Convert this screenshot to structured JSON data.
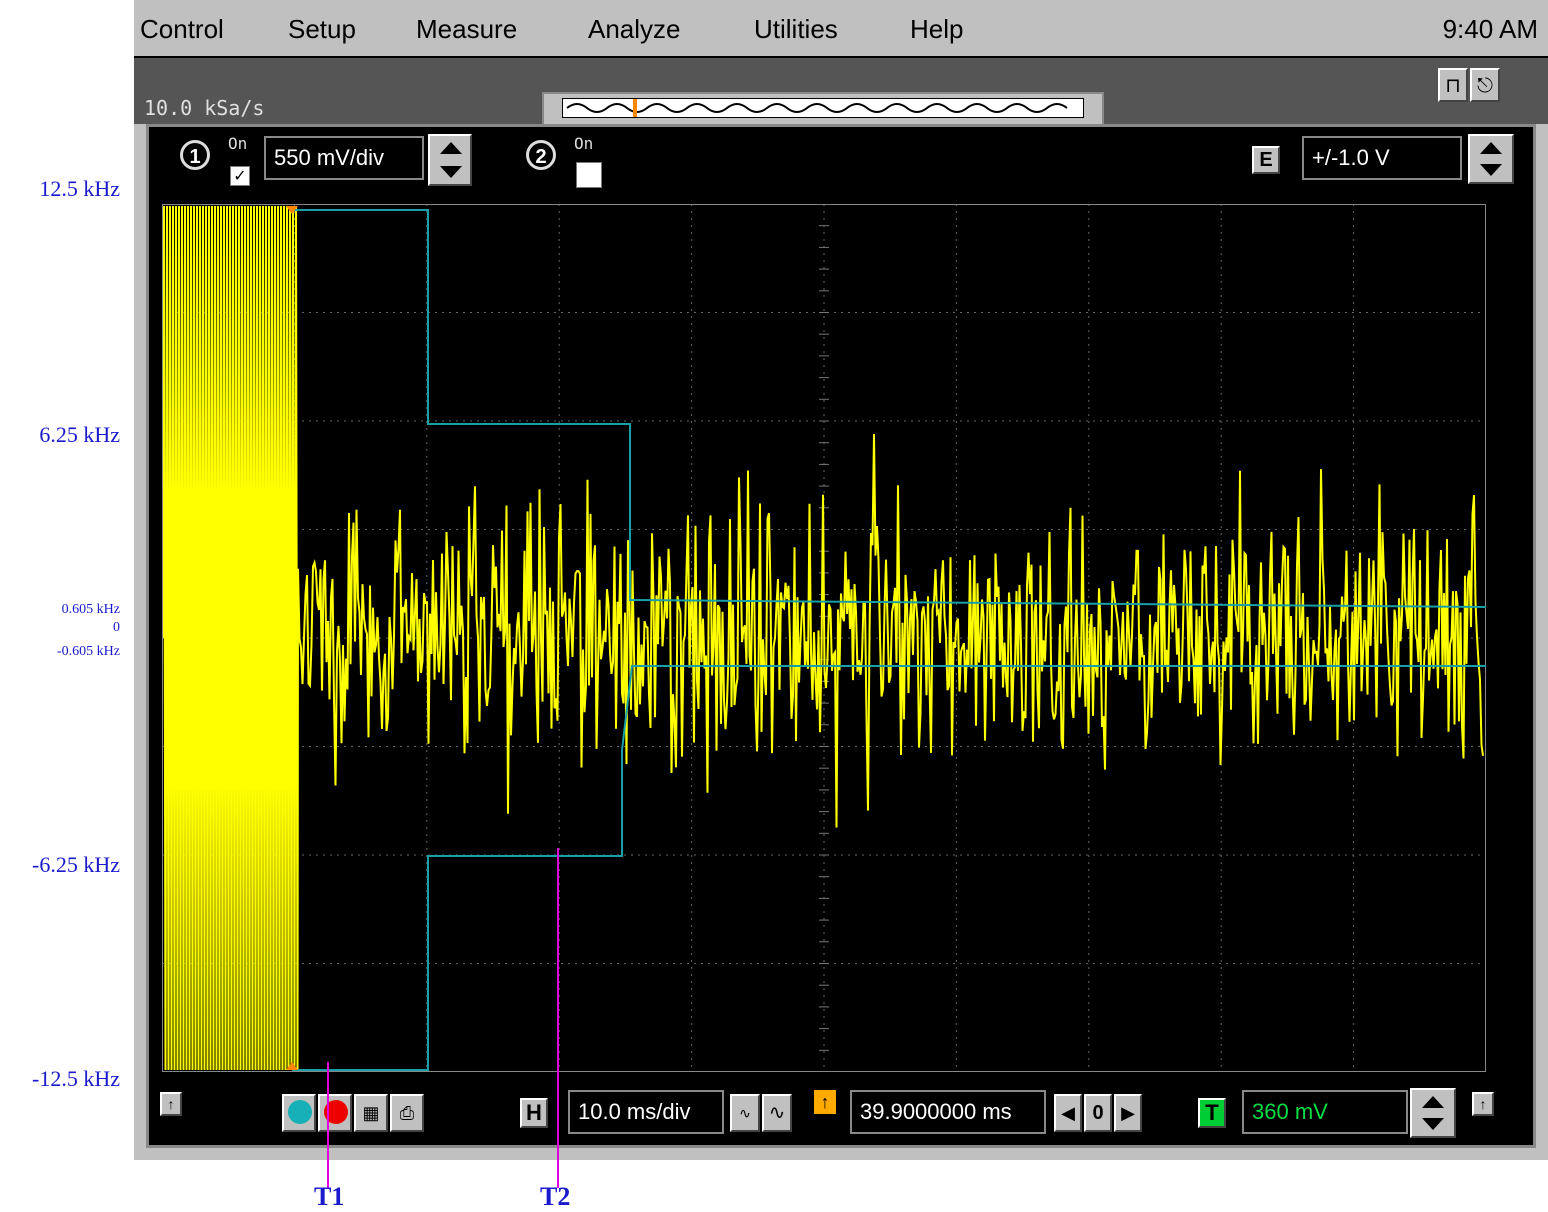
{
  "menu": {
    "items": [
      "Control",
      "Setup",
      "Measure",
      "Analyze",
      "Utilities",
      "Help"
    ],
    "clock": "9:40 AM"
  },
  "status": {
    "sample_rate": "10.0 kSa/s"
  },
  "channel1": {
    "number": "1",
    "on_label": "On",
    "checked": "✓",
    "scale": "550 mV/div"
  },
  "channel2": {
    "number": "2",
    "on_label": "On"
  },
  "external": {
    "label": "E",
    "range": "+/-1.0 V"
  },
  "bottom": {
    "h_label": "H",
    "timebase": "10.0 ms/div",
    "delay": "39.9000000 ms",
    "delay_zero": "0",
    "t_label": "T",
    "trigger_level": "360 mV"
  },
  "annotations": {
    "y_labels": [
      "12.5 kHz",
      "6.25 kHz",
      "0.605 kHz",
      "0",
      "-0.605 kHz",
      "-6.25 kHz",
      "-12.5 kHz"
    ],
    "markers": [
      "T1",
      "T2"
    ],
    "colors": {
      "trace": "#ffff00",
      "overlay": "#18a0a8",
      "markers": "#e000e0",
      "labels": "#1a1acc"
    }
  }
}
